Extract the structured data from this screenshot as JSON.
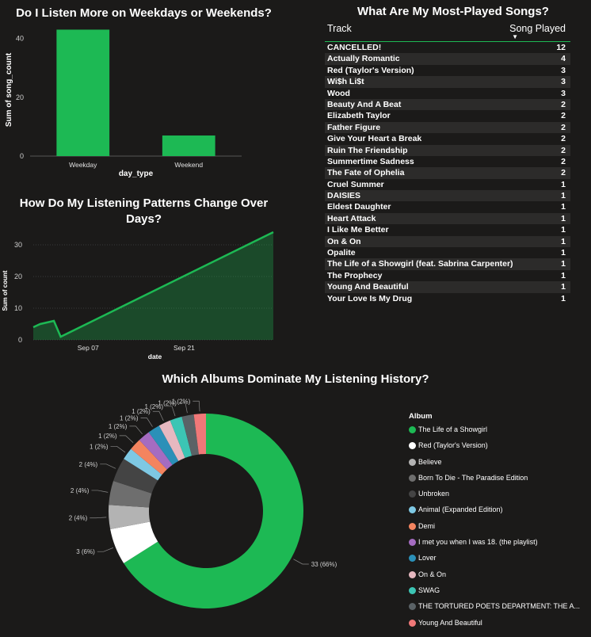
{
  "chart_data": [
    {
      "type": "bar",
      "title": "Do I Listen More on Weekdays or Weekends?",
      "xlabel": "day_type",
      "ylabel": "Sum of song_count",
      "categories": [
        "Weekday",
        "Weekend"
      ],
      "values": [
        43,
        7
      ],
      "ylim": [
        0,
        45
      ],
      "yticks": [
        0,
        20,
        40
      ],
      "color": "#1db954"
    },
    {
      "type": "area",
      "title": "How Do My Listening Patterns Change Over Days?",
      "xlabel": "date",
      "ylabel": "Sum of count",
      "x": [
        "2025-08-30",
        "2025-08-31",
        "2025-09-02",
        "2025-09-03",
        "2025-10-04"
      ],
      "values": [
        4,
        5,
        6,
        1,
        34
      ],
      "xlim": [
        "2025-08-30",
        "2025-10-04"
      ],
      "xticks": [
        {
          "value": "2025-09-07",
          "label": "Sep 07"
        },
        {
          "value": "2025-09-21",
          "label": "Sep 21"
        }
      ],
      "ylim": [
        0,
        36
      ],
      "yticks": [
        0,
        10,
        20,
        30
      ],
      "color": "#1db954"
    },
    {
      "type": "table",
      "title": "What Are My Most-Played Songs?",
      "columns": [
        "Track",
        "Song Played"
      ],
      "sort_indicator": "▼",
      "rows": [
        {
          "track": "CANCELLED!",
          "played": "12"
        },
        {
          "track": "Actually Romantic",
          "played": "4"
        },
        {
          "track": "Red (Taylor's Version)",
          "played": "3"
        },
        {
          "track": "Wi$h Li$t",
          "played": "3"
        },
        {
          "track": "Wood",
          "played": "3"
        },
        {
          "track": "Beauty And A Beat",
          "played": "2"
        },
        {
          "track": "Elizabeth Taylor",
          "played": "2"
        },
        {
          "track": "Father Figure",
          "played": "2"
        },
        {
          "track": "Give Your Heart a Break",
          "played": "2"
        },
        {
          "track": "Ruin The Friendship",
          "played": "2"
        },
        {
          "track": "Summertime Sadness",
          "played": "2"
        },
        {
          "track": "The Fate of Ophelia",
          "played": "2"
        },
        {
          "track": "Cruel Summer",
          "played": "1"
        },
        {
          "track": "DAISIES",
          "played": "1"
        },
        {
          "track": "Eldest Daughter",
          "played": "1"
        },
        {
          "track": "Heart Attack",
          "played": "1"
        },
        {
          "track": "I Like Me Better",
          "played": "1"
        },
        {
          "track": "On & On",
          "played": "1"
        },
        {
          "track": "Opalite",
          "played": "1"
        },
        {
          "track": "The Life of a Showgirl (feat. Sabrina Carpenter)",
          "played": "1"
        },
        {
          "track": "The Prophecy",
          "played": "1"
        },
        {
          "track": "Young And Beautiful",
          "played": "1"
        },
        {
          "track": "Your Love Is My Drug",
          "played": "1"
        }
      ]
    },
    {
      "type": "pie",
      "donut": true,
      "title": "Which Albums Dominate My Listening History?",
      "legend_title": "Album",
      "legend_position": "right",
      "slices": [
        {
          "name": "The Life of a Showgirl",
          "value": 33,
          "label": "33 (66%)",
          "color": "#1db954"
        },
        {
          "name": "Red (Taylor's Version)",
          "value": 3,
          "label": "3 (6%)",
          "color": "#ffffff"
        },
        {
          "name": "Believe",
          "value": 2,
          "label": "2 (4%)",
          "color": "#b3b3b3"
        },
        {
          "name": "Born To Die - The Paradise Edition",
          "value": 2,
          "label": "2 (4%)",
          "color": "#6e6e6e"
        },
        {
          "name": "Unbroken",
          "value": 2,
          "label": "2 (4%)",
          "color": "#444444"
        },
        {
          "name": "Animal (Expanded Edition)",
          "value": 1,
          "label": "1 (2%)",
          "color": "#7ec8e3"
        },
        {
          "name": "Demi",
          "value": 1,
          "label": "1 (2%)",
          "color": "#f4845f"
        },
        {
          "name": "I met you when I was 18. (the playlist)",
          "value": 1,
          "label": "1 (2%)",
          "color": "#a56cc1"
        },
        {
          "name": "Lover",
          "value": 1,
          "label": "1 (2%)",
          "color": "#2b90b8"
        },
        {
          "name": "On & On",
          "value": 1,
          "label": "1 (2%)",
          "color": "#e6b8c0"
        },
        {
          "name": "SWAG",
          "value": 1,
          "label": "1 (2%)",
          "color": "#3cc5b4"
        },
        {
          "name": "THE TORTURED POETS DEPARTMENT: THE A...",
          "value": 1,
          "label": "1 (2%)",
          "color": "#5a6266"
        },
        {
          "name": "Young And Beautiful",
          "value": 1,
          "label": "1 (2%)",
          "color": "#f07878"
        }
      ]
    }
  ]
}
